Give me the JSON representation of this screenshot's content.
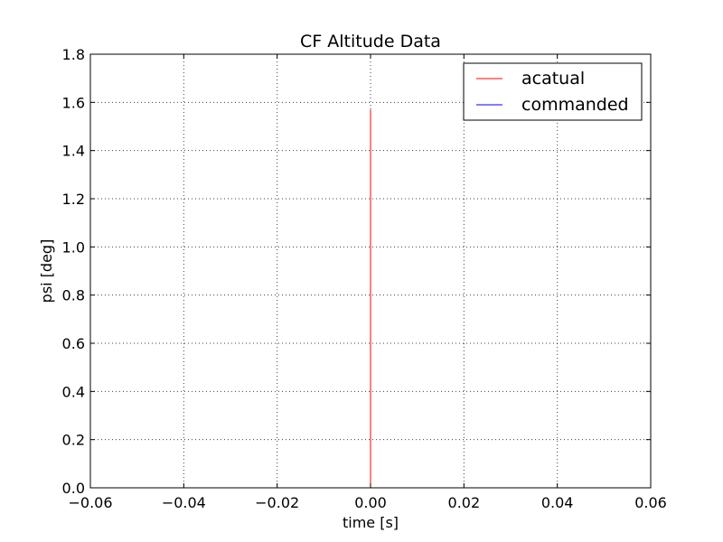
{
  "chart_data": {
    "type": "line",
    "title": "CF Altitude Data",
    "xlabel": "time [s]",
    "ylabel": "psi [deg]",
    "xlim": [
      -0.06,
      0.06
    ],
    "ylim": [
      0.0,
      1.8
    ],
    "x_ticks": [
      -0.06,
      -0.04,
      -0.02,
      0.0,
      0.02,
      0.04,
      0.06
    ],
    "x_tick_labels": [
      "−0.06",
      "−0.04",
      "−0.02",
      "0.00",
      "0.02",
      "0.04",
      "0.06"
    ],
    "y_ticks": [
      0.0,
      0.2,
      0.4,
      0.6,
      0.8,
      1.0,
      1.2,
      1.4,
      1.6,
      1.8
    ],
    "y_tick_labels": [
      "0.0",
      "0.2",
      "0.4",
      "0.6",
      "0.8",
      "1.0",
      "1.2",
      "1.4",
      "1.6",
      "1.8"
    ],
    "grid": true,
    "legend_position": "top-right",
    "series": [
      {
        "name": "acatual",
        "color": "#ff0000",
        "x": [
          0.0,
          0.0
        ],
        "y": [
          0.0,
          1.57
        ]
      },
      {
        "name": "commanded",
        "color": "#0000ff",
        "x": [
          0.0,
          0.0
        ],
        "y": [
          0.0,
          0.0
        ]
      }
    ]
  }
}
